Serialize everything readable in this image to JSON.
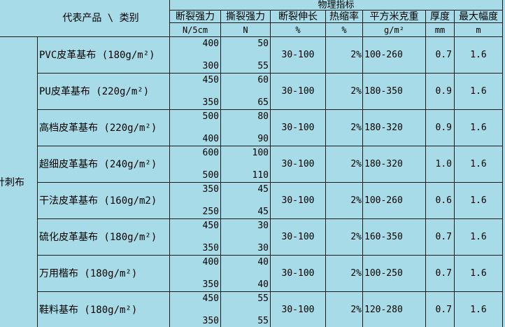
{
  "header": {
    "product_category": "代表产品 \\ 类别",
    "physical": "物理指标",
    "columns": [
      {
        "label": "断裂强力",
        "unit": "N/5cm"
      },
      {
        "label": "撕裂强力",
        "unit": "N"
      },
      {
        "label": "断裂伸长",
        "unit": "%"
      },
      {
        "label": "热缩率",
        "unit": "%"
      },
      {
        "label": "平方米克重",
        "unit": "g/m²"
      },
      {
        "label": "厚度",
        "unit": "mm"
      },
      {
        "label": "最大幅度",
        "unit": "m"
      }
    ]
  },
  "category_label": "针刺布",
  "rows": [
    {
      "product": "PVC皮革基布 (180g/m²)",
      "break_top": "400",
      "break_bottom": "300",
      "tear_top": "50",
      "tear_bottom": "55",
      "elongation": "30-100",
      "shrinkage": "2%",
      "weight": "100-260",
      "thickness": "0.7",
      "max_width": "1.6"
    },
    {
      "product": "PU皮革基布 (220g/m²)",
      "break_top": "450",
      "break_bottom": "350",
      "tear_top": "60",
      "tear_bottom": "65",
      "elongation": "30-100",
      "shrinkage": "2%",
      "weight": "180-350",
      "thickness": "0.9",
      "max_width": "1.6"
    },
    {
      "product": "高档皮革基布 (220g/m²)",
      "break_top": "500",
      "break_bottom": "400",
      "tear_top": "80",
      "tear_bottom": "90",
      "elongation": "30-100",
      "shrinkage": "2%",
      "weight": "180-320",
      "thickness": "0.9",
      "max_width": "1.6"
    },
    {
      "product": "超细皮革基布 (240g/m²)",
      "break_top": "600",
      "break_bottom": "500",
      "tear_top": "100",
      "tear_bottom": "110",
      "elongation": "30-100",
      "shrinkage": "2%",
      "weight": "180-320",
      "thickness": "1.0",
      "max_width": "1.6"
    },
    {
      "product": "干法皮革基布 (160g/m2)",
      "break_top": "350",
      "break_bottom": "250",
      "tear_top": "45",
      "tear_bottom": "45",
      "elongation": "30-100",
      "shrinkage": "2%",
      "weight": "100-260",
      "thickness": "0.6",
      "max_width": "1.6"
    },
    {
      "product": "硫化皮革基布 (180g/m²)",
      "break_top": "450",
      "break_bottom": "350",
      "tear_top": "30",
      "tear_bottom": "30",
      "elongation": "30-100",
      "shrinkage": "2%",
      "weight": "160-350",
      "thickness": "0.7",
      "max_width": "1.6"
    },
    {
      "product": "万用楷布 (180g/m²)",
      "break_top": "400",
      "break_bottom": "350",
      "tear_top": "40",
      "tear_bottom": "40",
      "elongation": "30-100",
      "shrinkage": "2%",
      "weight": "100-250",
      "thickness": "0.7",
      "max_width": "1.6"
    },
    {
      "product": "鞋料基布 (180g/m²)",
      "break_top": "450",
      "break_bottom": "350",
      "tear_top": "55",
      "tear_bottom": "55",
      "elongation": "30-100",
      "shrinkage": "2%",
      "weight": "120-280",
      "thickness": "0.7",
      "max_width": "1.6"
    }
  ],
  "colors": {
    "background": "#a8dbe8",
    "grid": "#1c1c1c",
    "text": "#000000"
  }
}
